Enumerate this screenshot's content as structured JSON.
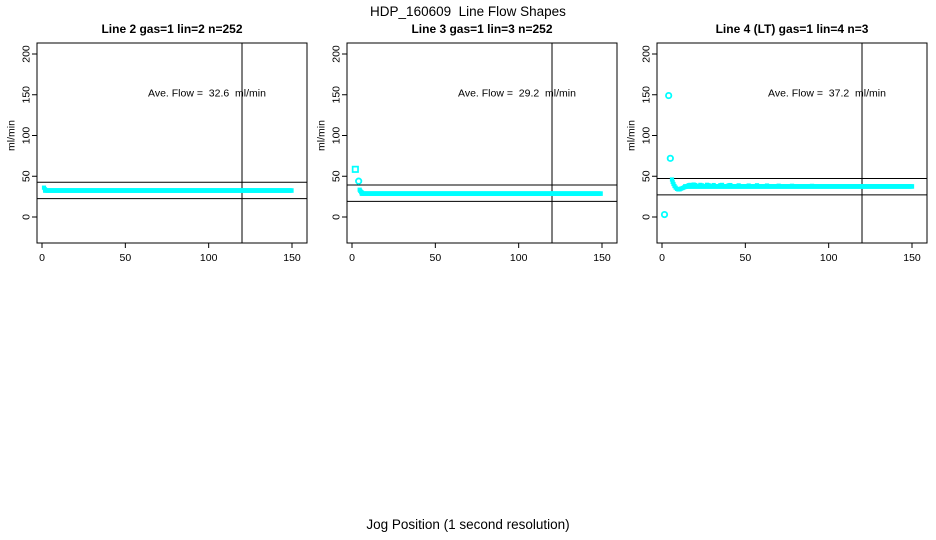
{
  "figure": {
    "title": "HDP_160609  Line Flow Shapes",
    "outer_xlabel": "Jog Position (1 second resolution)"
  },
  "colors": {
    "marker": "#00ffff",
    "axis": "#000000",
    "background": "#ffffff"
  },
  "chart_data": {
    "type": "scatter",
    "figure_title": "HDP_160609  Line Flow Shapes",
    "xlabel": "Jog Position (1 second resolution)",
    "ylabel": "ml/min",
    "x_ticks": [
      0,
      50,
      100,
      150
    ],
    "y_ticks": [
      0,
      50,
      100,
      150,
      200
    ],
    "xlim": [
      -3,
      159
    ],
    "ylim": [
      -32,
      213
    ],
    "grid": false,
    "marker_color": "#00ffff",
    "panels": [
      {
        "title": "Line 2 gas=1 lin=2 n=252",
        "n": 252,
        "ave_flow": 32.6,
        "annotation": "Ave. Flow =  32.6  ml/min",
        "ref_lines": {
          "upper": 42.6,
          "lower": 22.6,
          "vertical_x": 120
        },
        "flat_band": [
          {
            "x_start": 2,
            "x_end": 150,
            "y": 32.5
          }
        ],
        "lead_points": [
          [
            1.2,
            36
          ],
          [
            1.8,
            34
          ]
        ],
        "outlier_points": []
      },
      {
        "title": "Line 3 gas=1 lin=3 n=252",
        "n": 252,
        "ave_flow": 29.2,
        "annotation": "Ave. Flow =  29.2  ml/min",
        "ref_lines": {
          "upper": 39.2,
          "lower": 19.2,
          "vertical_x": 120
        },
        "flat_band": [
          {
            "x_start": 6,
            "x_end": 150,
            "y": 28.7
          }
        ],
        "lead_points": [
          [
            4.6,
            33.5
          ],
          [
            5.0,
            32.0
          ],
          [
            5.5,
            30.5
          ],
          [
            6.0,
            29.8
          ]
        ],
        "outlier_points": [
          {
            "x": 2.0,
            "y": 58.5,
            "marker": "open-square"
          },
          {
            "x": 4.0,
            "y": 44.0,
            "marker": "open-circle"
          }
        ]
      },
      {
        "title": "Line 4 (LT) gas=1 lin=4 n=3",
        "n": 3,
        "ave_flow": 37.2,
        "annotation": "Ave. Flow =  37.2  ml/min",
        "ref_lines": {
          "upper": 47.2,
          "lower": 27.2,
          "vertical_x": 120
        },
        "flat_band": [
          {
            "x_start": 14,
            "x_end": 150,
            "y": 37.5
          }
        ],
        "lead_points": [
          [
            6.0,
            46
          ],
          [
            6.4,
            43
          ],
          [
            6.9,
            40.5
          ],
          [
            7.5,
            38
          ],
          [
            8.2,
            36
          ],
          [
            9.0,
            34.5
          ],
          [
            9.8,
            33.8
          ],
          [
            10.6,
            34
          ],
          [
            11.5,
            34.8
          ],
          [
            12.4,
            35.6
          ],
          [
            13.3,
            36.4
          ],
          [
            14.2,
            37
          ],
          [
            16,
            39
          ],
          [
            17,
            39.4
          ],
          [
            19,
            39.8
          ],
          [
            20,
            39.2
          ],
          [
            23,
            39.4
          ],
          [
            24,
            38.8
          ],
          [
            27,
            39.5
          ],
          [
            28,
            39
          ],
          [
            31,
            39.2
          ],
          [
            35,
            39
          ],
          [
            36,
            39.4
          ],
          [
            40,
            38.8
          ],
          [
            41,
            39.2
          ],
          [
            46,
            38.8
          ],
          [
            52,
            38.6
          ],
          [
            57,
            38.9
          ],
          [
            63,
            38.6
          ],
          [
            70,
            38.4
          ],
          [
            78,
            38.3
          ],
          [
            90,
            38.2
          ]
        ],
        "outlier_points": [
          {
            "x": 1.5,
            "y": 3.0,
            "marker": "open-circle"
          },
          {
            "x": 4.0,
            "y": 149.0,
            "marker": "open-circle"
          },
          {
            "x": 5.0,
            "y": 72.0,
            "marker": "open-circle"
          }
        ]
      }
    ]
  }
}
